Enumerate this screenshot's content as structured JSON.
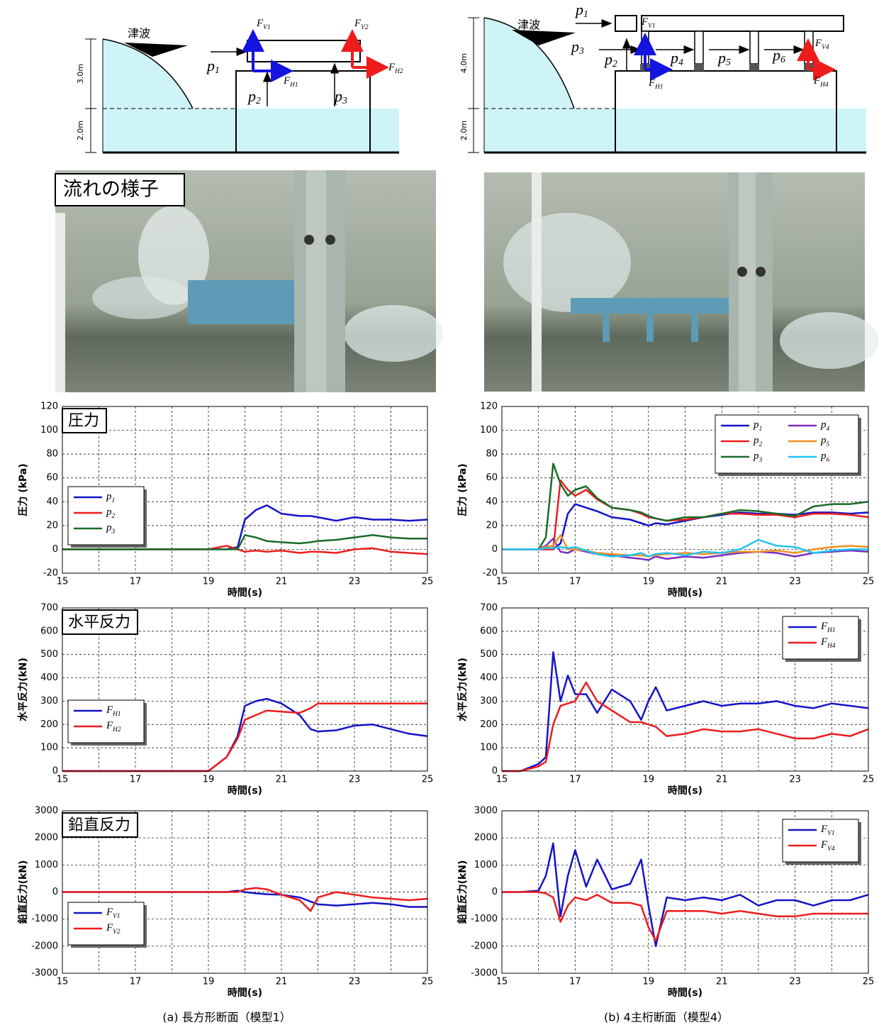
{
  "diagrams": [
    {
      "tsunami": "津波",
      "heights": [
        "3.0m",
        "2.0m"
      ],
      "labels": [
        "FV1",
        "FV2",
        "p1",
        "FH1",
        "FH2",
        "p2",
        "p3"
      ]
    },
    {
      "tsunami": "津波",
      "heights": [
        "4.0m",
        "2.0m"
      ],
      "labels": [
        "p1",
        "FV1",
        "p3",
        "p2",
        "p4",
        "p5",
        "p6",
        "FV4",
        "FH1",
        "FH4"
      ]
    }
  ],
  "photo_label": "流れの様子",
  "chart_data": [
    {
      "type": "line",
      "title": "圧力",
      "xlabel": "時間(s)",
      "ylabel": "圧力 (kPa)",
      "legend": "lower left",
      "grid": true,
      "x": [
        15,
        16,
        17,
        18,
        19,
        19.5,
        19.8,
        20,
        20.3,
        20.6,
        21,
        21.5,
        21.8,
        22,
        22.5,
        23,
        23.5,
        24,
        24.5,
        25
      ],
      "xlim": [
        15,
        25
      ],
      "xticks": [
        15,
        17,
        19,
        21,
        23,
        25
      ],
      "xminor": [
        16,
        18,
        20,
        22,
        24
      ],
      "ylim": [
        -20,
        120
      ],
      "yticks": [
        -20,
        0,
        20,
        40,
        60,
        80,
        100,
        120
      ],
      "series": [
        {
          "name": "p1",
          "color": "#1414c8",
          "values": [
            0,
            0,
            0,
            0,
            0,
            0,
            2,
            25,
            33,
            37,
            30,
            28,
            28,
            27,
            24,
            27,
            25,
            25,
            24,
            25
          ]
        },
        {
          "name": "p2",
          "color": "#ee1c1c",
          "values": [
            0,
            0,
            0,
            0,
            0,
            3,
            0,
            -2,
            -1,
            -2,
            -1,
            -3,
            -2,
            -2,
            -3,
            0,
            1,
            -2,
            -3,
            -4
          ]
        },
        {
          "name": "p3",
          "color": "#1a6b2a",
          "values": [
            0,
            0,
            0,
            0,
            0,
            0,
            0,
            12,
            10,
            7,
            6,
            5,
            6,
            7,
            8,
            10,
            12,
            10,
            9,
            9
          ]
        }
      ]
    },
    {
      "type": "line",
      "xlabel": "時間(s)",
      "ylabel": "圧力 (kPa)",
      "legend": "upper right",
      "legend_columns": 2,
      "grid": true,
      "x": [
        15,
        15.5,
        16,
        16.2,
        16.4,
        16.6,
        16.8,
        17,
        17.3,
        17.6,
        18,
        18.5,
        18.8,
        19,
        19.2,
        19.5,
        20,
        20.5,
        21,
        21.5,
        22,
        22.5,
        23,
        23.5,
        24,
        24.5,
        25
      ],
      "xlim": [
        15,
        25
      ],
      "xticks": [
        15,
        17,
        19,
        21,
        23,
        25
      ],
      "xminor": [
        16,
        18,
        20,
        22,
        24
      ],
      "ylim": [
        -20,
        120
      ],
      "yticks": [
        -20,
        0,
        20,
        40,
        60,
        80,
        100,
        120
      ],
      "series": [
        {
          "name": "p1",
          "color": "#1414c8",
          "values": [
            0,
            0,
            0,
            0,
            0,
            5,
            30,
            38,
            35,
            32,
            27,
            25,
            22,
            20,
            22,
            21,
            24,
            27,
            29,
            31,
            30,
            30,
            29,
            31,
            31,
            30,
            31
          ]
        },
        {
          "name": "p2",
          "color": "#ee1c1c",
          "values": [
            0,
            0,
            0,
            0,
            0,
            58,
            50,
            45,
            50,
            42,
            35,
            33,
            30,
            27,
            26,
            24,
            25,
            27,
            30,
            30,
            29,
            29,
            27,
            30,
            30,
            29,
            27
          ]
        },
        {
          "name": "p3",
          "color": "#1a6b2a",
          "values": [
            0,
            0,
            0,
            10,
            72,
            55,
            45,
            50,
            53,
            43,
            35,
            33,
            31,
            28,
            26,
            24,
            27,
            27,
            30,
            33,
            32,
            30,
            28,
            36,
            38,
            38,
            40
          ]
        },
        {
          "name": "p4",
          "color": "#7a2fbf",
          "values": [
            0,
            0,
            0,
            3,
            9,
            -2,
            -3,
            0,
            -2,
            -4,
            -5,
            -7,
            -8,
            -9,
            -6,
            -8,
            -6,
            -7,
            -5,
            -3,
            -2,
            -3,
            -6,
            -3,
            -2,
            -1,
            -2
          ]
        },
        {
          "name": "p5",
          "color": "#f09020",
          "values": [
            0,
            0,
            0,
            2,
            3,
            12,
            0,
            0,
            -1,
            -3,
            -4,
            -5,
            -5,
            -6,
            -5,
            -4,
            -3,
            -4,
            -3,
            -2,
            -2,
            -1,
            -3,
            0,
            2,
            3,
            2
          ]
        },
        {
          "name": "p6",
          "color": "#22c4f0",
          "values": [
            0,
            0,
            0,
            1,
            1,
            2,
            1,
            2,
            -1,
            -4,
            -6,
            -5,
            -3,
            -6,
            -4,
            -3,
            -5,
            -2,
            -3,
            0,
            8,
            3,
            2,
            -3,
            -1,
            0,
            0
          ]
        }
      ]
    },
    {
      "type": "line",
      "title": "水平反力",
      "xlabel": "時間(s)",
      "ylabel": "水平反力(kN)",
      "legend": "lower left",
      "grid": true,
      "x": [
        15,
        16,
        17,
        18,
        19,
        19.5,
        19.8,
        20,
        20.3,
        20.6,
        21,
        21.5,
        21.8,
        22,
        22.5,
        23,
        23.5,
        24,
        24.5,
        25
      ],
      "xlim": [
        15,
        25
      ],
      "xticks": [
        15,
        17,
        19,
        21,
        23,
        25
      ],
      "xminor": [
        16,
        18,
        20,
        22,
        24
      ],
      "ylim": [
        0,
        700
      ],
      "yticks": [
        0,
        100,
        200,
        300,
        400,
        500,
        600,
        700
      ],
      "series": [
        {
          "name": "FH1",
          "color": "#1414c8",
          "values": [
            0,
            0,
            0,
            0,
            0,
            60,
            150,
            280,
            300,
            310,
            290,
            240,
            180,
            170,
            175,
            195,
            200,
            180,
            160,
            150
          ]
        },
        {
          "name": "FH2",
          "color": "#ee1c1c",
          "values": [
            0,
            0,
            0,
            0,
            0,
            60,
            140,
            220,
            240,
            260,
            255,
            250,
            270,
            290,
            290,
            290,
            290,
            290,
            290,
            290
          ]
        }
      ]
    },
    {
      "type": "line",
      "xlabel": "時間(s)",
      "ylabel": "水平反力(kN)",
      "legend": "upper right",
      "grid": true,
      "x": [
        15,
        15.5,
        16,
        16.2,
        16.4,
        16.6,
        16.8,
        17,
        17.3,
        17.6,
        18,
        18.5,
        18.8,
        19,
        19.2,
        19.5,
        20,
        20.5,
        21,
        21.5,
        22,
        22.5,
        23,
        23.5,
        24,
        24.5,
        25
      ],
      "xlim": [
        15,
        25
      ],
      "xticks": [
        15,
        17,
        19,
        21,
        23,
        25
      ],
      "xminor": [
        16,
        18,
        20,
        22,
        24
      ],
      "ylim": [
        0,
        700
      ],
      "yticks": [
        0,
        100,
        200,
        300,
        400,
        500,
        600,
        700
      ],
      "series": [
        {
          "name": "FH1",
          "color": "#1414c8",
          "values": [
            0,
            0,
            30,
            60,
            510,
            300,
            410,
            330,
            330,
            250,
            350,
            300,
            220,
            300,
            360,
            260,
            280,
            300,
            280,
            290,
            290,
            300,
            280,
            270,
            290,
            280,
            270
          ]
        },
        {
          "name": "FH4",
          "color": "#ee1c1c",
          "values": [
            0,
            0,
            20,
            40,
            200,
            280,
            290,
            300,
            380,
            300,
            260,
            210,
            210,
            200,
            190,
            150,
            160,
            180,
            170,
            170,
            180,
            160,
            140,
            140,
            160,
            150,
            180
          ]
        }
      ]
    },
    {
      "type": "line",
      "title": "鉛直反力",
      "xlabel": "時間(s)",
      "ylabel": "鉛直反力(kN)",
      "legend": "lower left",
      "grid": true,
      "x": [
        15,
        16,
        17,
        18,
        19,
        19.5,
        19.8,
        20,
        20.3,
        20.6,
        21,
        21.5,
        21.8,
        22,
        22.5,
        23,
        23.5,
        24,
        24.5,
        25
      ],
      "xlim": [
        15,
        25
      ],
      "xticks": [
        15,
        17,
        19,
        21,
        23,
        25
      ],
      "xminor": [
        16,
        18,
        20,
        22,
        24
      ],
      "ylim": [
        -3000,
        3000
      ],
      "yticks": [
        -3000,
        -2000,
        -1000,
        0,
        1000,
        2000,
        3000
      ],
      "series": [
        {
          "name": "FV1",
          "color": "#1414c8",
          "values": [
            0,
            0,
            0,
            0,
            0,
            0,
            50,
            0,
            -50,
            -80,
            -100,
            -200,
            -350,
            -450,
            -500,
            -450,
            -400,
            -450,
            -550,
            -550
          ]
        },
        {
          "name": "FV2",
          "color": "#ee1c1c",
          "values": [
            0,
            0,
            0,
            0,
            0,
            0,
            0,
            100,
            150,
            100,
            -100,
            -300,
            -700,
            -200,
            0,
            -100,
            -200,
            -250,
            -300,
            -250
          ]
        }
      ]
    },
    {
      "type": "line",
      "xlabel": "時間(s)",
      "ylabel": "鉛直反力(kN)",
      "legend": "upper right",
      "grid": true,
      "x": [
        15,
        15.5,
        16,
        16.2,
        16.4,
        16.6,
        16.8,
        17,
        17.3,
        17.6,
        18,
        18.5,
        18.8,
        19,
        19.2,
        19.5,
        20,
        20.5,
        21,
        21.5,
        22,
        22.5,
        23,
        23.5,
        24,
        24.5,
        25
      ],
      "xlim": [
        15,
        25
      ],
      "xticks": [
        15,
        17,
        19,
        21,
        23,
        25
      ],
      "xminor": [
        16,
        18,
        20,
        22,
        24
      ],
      "ylim": [
        -3000,
        3000
      ],
      "yticks": [
        -3000,
        -2000,
        -1000,
        0,
        1000,
        2000,
        3000
      ],
      "series": [
        {
          "name": "FV1",
          "color": "#1414c8",
          "values": [
            0,
            0,
            50,
            600,
            1800,
            -900,
            600,
            1550,
            200,
            1200,
            100,
            300,
            1200,
            -500,
            -2000,
            -200,
            -300,
            -200,
            -300,
            -100,
            -500,
            -300,
            -300,
            -500,
            -300,
            -300,
            -100
          ]
        },
        {
          "name": "FV4",
          "color": "#ee1c1c",
          "values": [
            0,
            0,
            0,
            -50,
            -200,
            -1100,
            -500,
            -200,
            -300,
            -100,
            -400,
            -400,
            -500,
            -1300,
            -1800,
            -700,
            -700,
            -700,
            -800,
            -700,
            -800,
            -900,
            -900,
            -800,
            -800,
            -800,
            -800
          ]
        }
      ]
    }
  ],
  "captions": [
    "(a)  長方形断面（模型1）",
    "(b)  4主桁断面（模型4）"
  ]
}
